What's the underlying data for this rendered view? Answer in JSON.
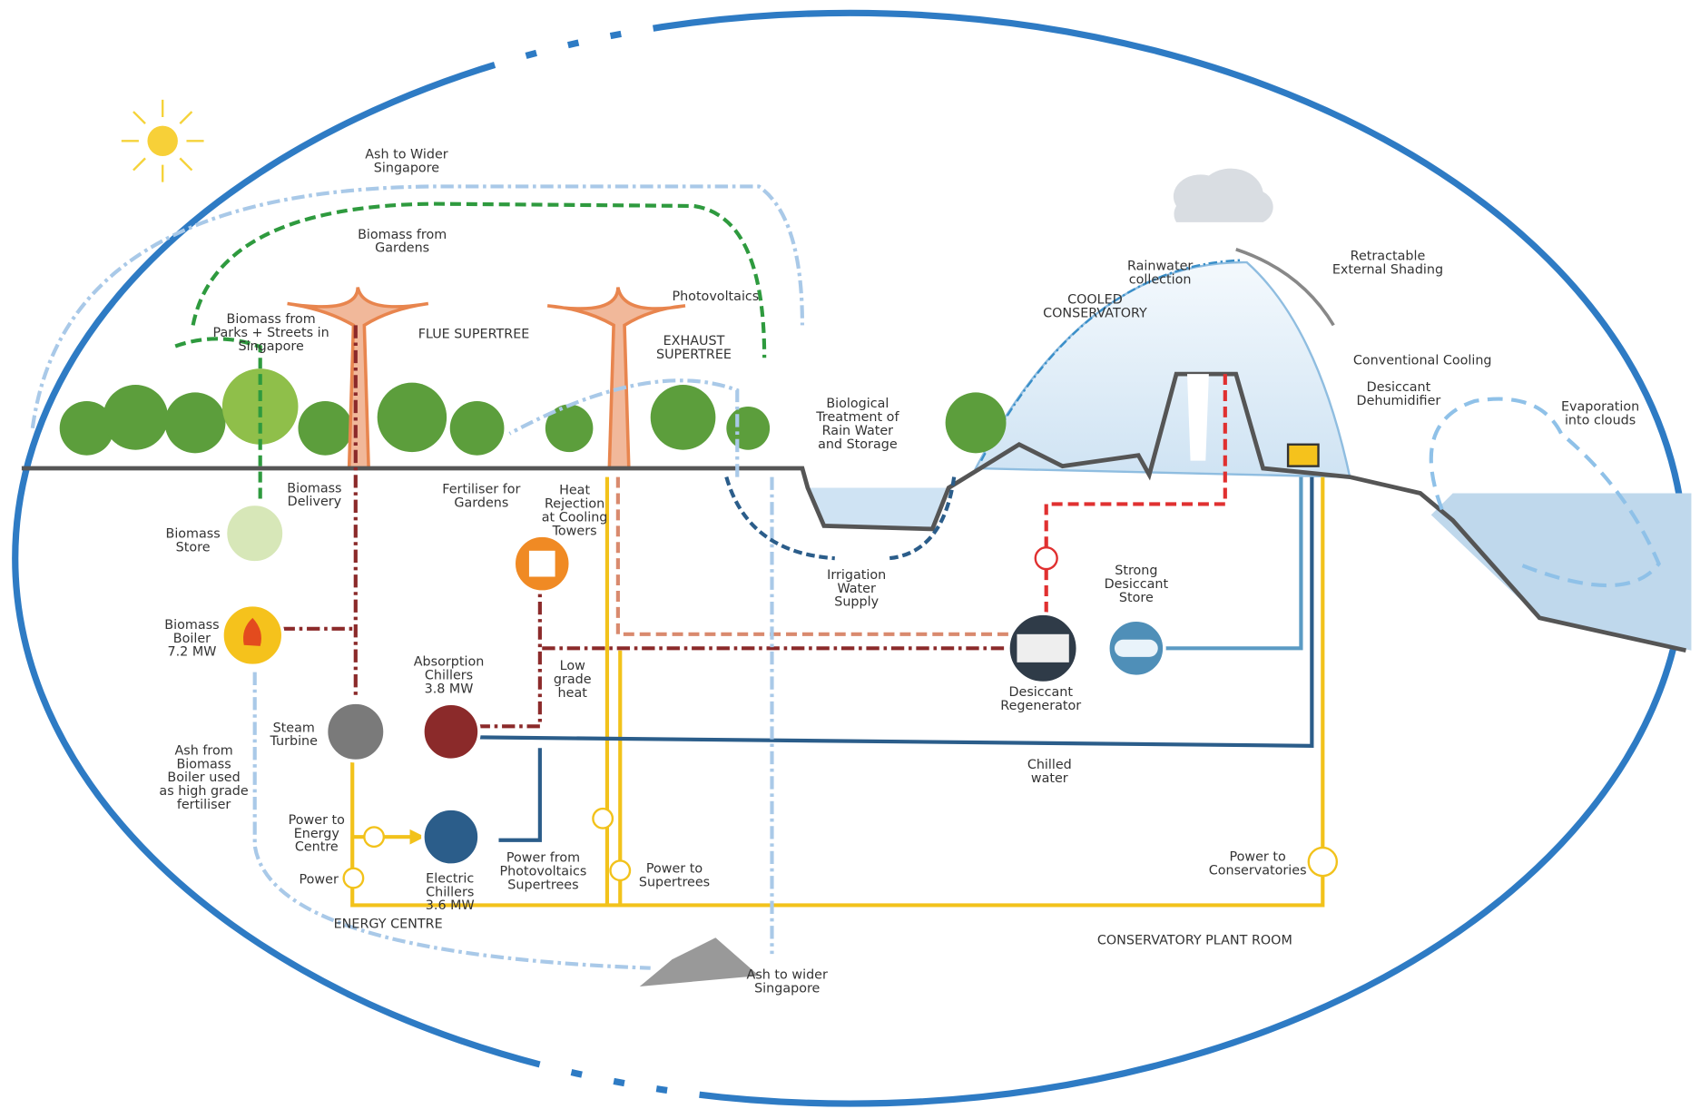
{
  "labels": [
    [
      "Ash to Wider",
      "Singapore"
    ],
    [
      "Biomass from",
      "Gardens"
    ],
    [
      "Biomass from",
      "Parks + Streets in",
      "Singapore"
    ],
    [
      "FLUE SUPERTREE"
    ],
    [
      "Photovoltaics"
    ],
    [
      "EXHAUST",
      "SUPERTREE"
    ],
    [
      "Rainwater",
      "collection"
    ],
    [
      "Retractable",
      "External Shading"
    ],
    [
      "COOLED",
      "CONSERVATORY"
    ],
    [
      "Conventional Cooling"
    ],
    [
      "Desiccant",
      "Dehumidifier"
    ],
    [
      "Evaporation",
      "into clouds"
    ],
    [
      "Biological",
      "Treatment of",
      "Rain Water",
      "and Storage"
    ],
    [
      "Biomass",
      "Delivery"
    ],
    [
      "Fertiliser for",
      "Gardens"
    ],
    [
      "Heat",
      "Rejection",
      "at Cooling",
      "Towers"
    ],
    [
      "Biomass",
      "Store"
    ],
    [
      "Irrigation",
      "Water",
      "Supply"
    ],
    [
      "Strong",
      "Desiccant",
      "Store"
    ],
    [
      "Biomass",
      "Boiler",
      "7.2 MW"
    ],
    [
      "Low",
      "grade",
      "heat"
    ],
    [
      "Absorption",
      "Chillers",
      "3.8 MW"
    ],
    [
      "Desiccant",
      "Regenerator"
    ],
    [
      "Steam",
      "Turbine"
    ],
    [
      "Ash from",
      "Biomass",
      "Boiler used",
      "as high grade",
      "fertiliser"
    ],
    [
      "Chilled",
      "water"
    ],
    [
      "Power to",
      "Energy",
      "Centre"
    ],
    [
      "Power"
    ],
    [
      "Electric",
      "Chillers",
      "3.6 MW"
    ],
    [
      "Power from",
      "Photovoltaics",
      "Supertrees"
    ],
    [
      "Power to",
      "Supertrees"
    ],
    [
      "Power to",
      "Conservatories"
    ],
    [
      "ENERGY CENTRE"
    ],
    [
      "CONSERVATORY PLANT ROOM"
    ],
    [
      "Ash to wider",
      "Singapore"
    ]
  ]
}
